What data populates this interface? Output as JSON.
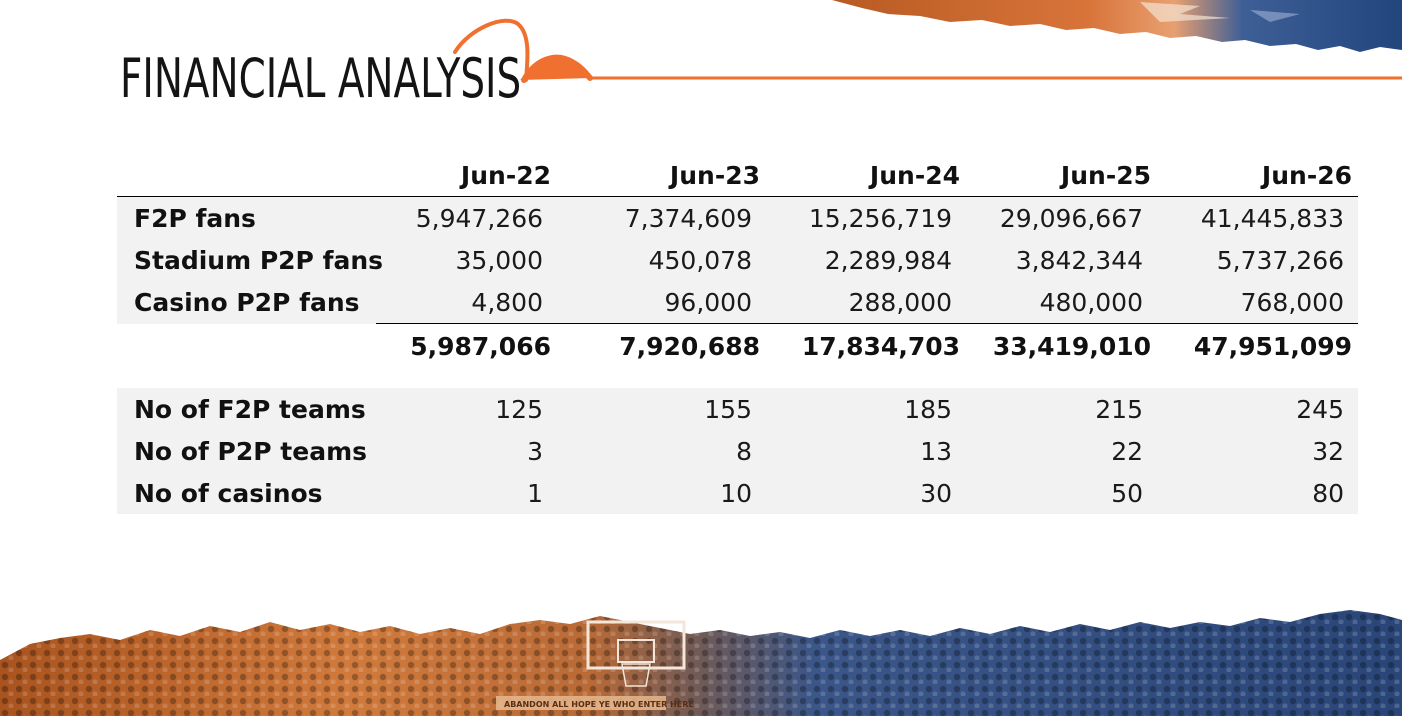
{
  "page": {
    "title": "FINANCIAL ANALYSIS"
  },
  "colors": {
    "accent": "#f07030",
    "ink": "#141414",
    "row_shade": "#f2f2f2",
    "crowd_orange": "#c8672a",
    "crowd_blue": "#2f4f86"
  },
  "table": {
    "columns": [
      "Jun-22",
      "Jun-23",
      "Jun-24",
      "Jun-25",
      "Jun-26"
    ],
    "fan_rows": [
      {
        "label": "F2P fans",
        "values": [
          "5,947,266",
          "7,374,609",
          "15,256,719",
          "29,096,667",
          "41,445,833"
        ]
      },
      {
        "label": "Stadium P2P fans",
        "values": [
          "35,000",
          "450,078",
          "2,289,984",
          "3,842,344",
          "5,737,266"
        ]
      },
      {
        "label": "Casino P2P fans",
        "values": [
          "4,800",
          "96,000",
          "288,000",
          "480,000",
          "768,000"
        ]
      }
    ],
    "totals": [
      "5,987,066",
      "7,920,688",
      "17,834,703",
      "33,419,010",
      "47,951,099"
    ],
    "count_rows": [
      {
        "label": "No of F2P teams",
        "values": [
          "125",
          "155",
          "185",
          "215",
          "245"
        ]
      },
      {
        "label": "No of P2P teams",
        "values": [
          "3",
          "8",
          "13",
          "22",
          "32"
        ]
      },
      {
        "label": "No of casinos",
        "values": [
          "1",
          "10",
          "30",
          "50",
          "80"
        ]
      }
    ]
  },
  "decor": {
    "banner_text": "ABANDON ALL HOPE YE WHO ENTER HERE"
  }
}
